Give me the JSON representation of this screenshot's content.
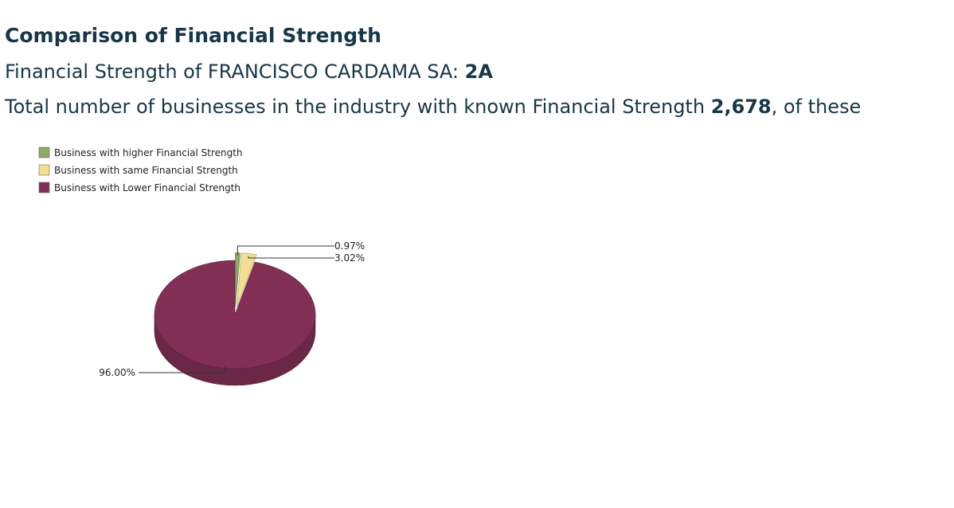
{
  "title": "Comparison of Financial Strength",
  "strength_line": {
    "prefix": "Financial Strength of FRANCISCO CARDAMA SA: ",
    "rating": "2A"
  },
  "total_line": {
    "prefix": "Total number of businesses in the industry with known Financial Strength ",
    "count": "2,678",
    "suffix": ", of these"
  },
  "chart_data": {
    "type": "pie",
    "legend_position": "top-left",
    "series": [
      {
        "name": "Business with higher Financial Strength",
        "value": 0.97,
        "label": "0.97%",
        "color": "#8aab63"
      },
      {
        "name": "Business with same Financial Strength",
        "value": 3.02,
        "label": "3.02%",
        "color": "#f3df93"
      },
      {
        "name": "Business with Lower Financial Strength",
        "value": 96.0,
        "label": "96.00%",
        "color": "#822f55"
      }
    ]
  }
}
